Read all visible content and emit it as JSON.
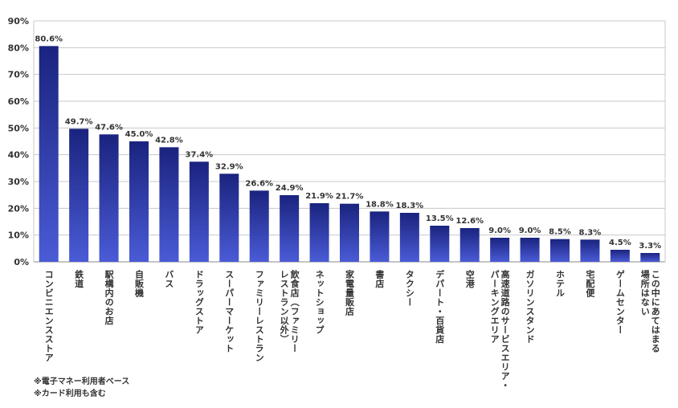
{
  "chart_data": {
    "type": "bar",
    "categories": [
      "コンビニエンスストア",
      "鉄道",
      "駅構内のお店",
      "自販機",
      "バス",
      "ドラッグストア",
      "スーパーマーケット",
      "ファミリーレストラン",
      [
        "飲食店（ファミリー",
        "レストラン以外）"
      ],
      "ネットショップ",
      "家電量販店",
      "書店",
      "タクシー",
      "デパート・百貨店",
      "空港",
      [
        "高速道路のサービスエリア・",
        "パーキングエリア"
      ],
      "ガソリンスタンド",
      "ホテル",
      "宅配便",
      "ゲームセンター",
      [
        "この中にあてはまる",
        "場所はない"
      ]
    ],
    "values": [
      80.6,
      49.7,
      47.6,
      45.0,
      42.8,
      37.4,
      32.9,
      26.6,
      24.9,
      21.9,
      21.7,
      18.8,
      18.3,
      13.5,
      12.6,
      9.0,
      9.0,
      8.5,
      8.3,
      4.5,
      3.3
    ],
    "data_labels": [
      "80.6%",
      "49.7%",
      "47.6%",
      "45.0%",
      "42.8%",
      "37.4%",
      "32.9%",
      "26.6%",
      "24.9%",
      "21.9%",
      "21.7%",
      "18.8%",
      "18.3%",
      "13.5%",
      "12.6%",
      "9.0%",
      "9.0%",
      "8.5%",
      "8.3%",
      "4.5%",
      "3.3%"
    ],
    "yticks": [
      "0%",
      "10%",
      "20%",
      "30%",
      "40%",
      "50%",
      "60%",
      "70%",
      "80%",
      "90%"
    ],
    "ylim": [
      0,
      90
    ],
    "grid": true,
    "colors": {
      "bar_top": "#1a237e",
      "bar_bottom": "#4a5bd6",
      "grid": "#c8c8c8",
      "axis": "#888888"
    }
  },
  "footnotes": [
    "※電子マネー利用者ベース",
    "※カード利用も含む"
  ]
}
